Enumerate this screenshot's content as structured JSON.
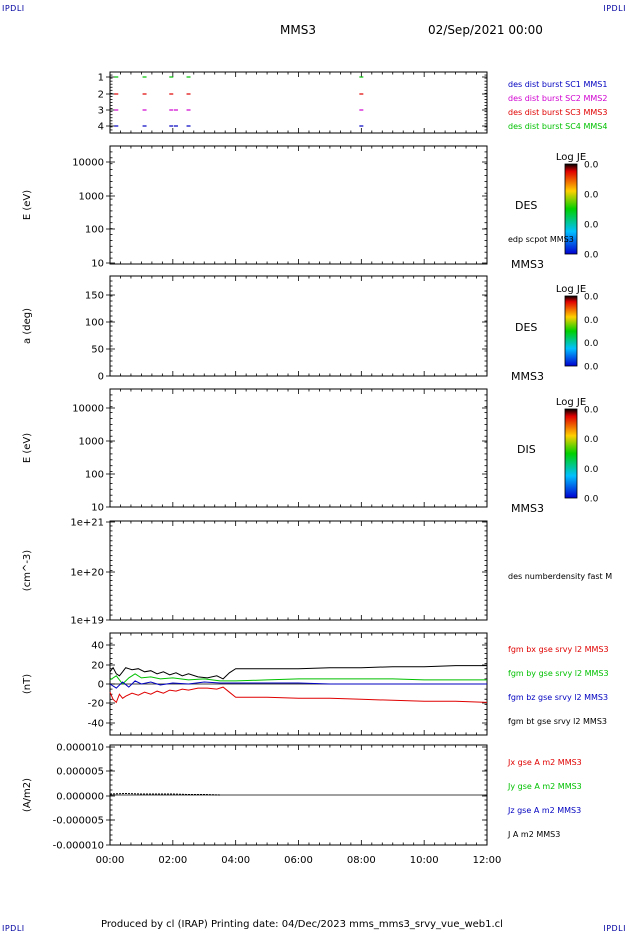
{
  "corner": {
    "tl": "IPDLI",
    "tr": "IPDLI",
    "bl": "IPDLI",
    "br": "IPDLI"
  },
  "header": {
    "spacecraft": "MMS3",
    "datetime": "02/Sep/2021 00:00"
  },
  "footer": {
    "text": "Produced by cl (IRAP)   Printing date: 04/Dec/2023   mms_mms3_srvy_vue_web1.cl"
  },
  "colors": {
    "red": "#e00000",
    "green": "#00c000",
    "blue": "#0000c0",
    "magenta": "#d000d0",
    "black": "#000000"
  },
  "chart_data": [
    {
      "type": "scatter",
      "id": "burst",
      "x_unit": "hours",
      "xlim": [
        0,
        12
      ],
      "ylim": [
        0.6,
        4.4
      ],
      "yticks": [
        "1",
        "2",
        "3",
        "4"
      ],
      "legend": [
        {
          "label": "des dist burst SC1 MMS1",
          "color": "#0000c0"
        },
        {
          "label": "des dist burst SC2 MMS2",
          "color": "#d000d0"
        },
        {
          "label": "des dist burst SC3 MMS3",
          "color": "#e00000"
        },
        {
          "label": "des dist burst SC4 MMS4",
          "color": "#00c000"
        }
      ],
      "series": [
        {
          "name": "des dist burst SC1 MMS1",
          "y": 1,
          "x": [
            0.2,
            1.1,
            1.95,
            2.1,
            2.5,
            8.0
          ]
        },
        {
          "name": "des dist burst SC2 MMS2",
          "y": 2,
          "x": [
            0.2,
            1.1,
            1.95,
            2.1,
            2.5,
            8.0
          ]
        },
        {
          "name": "des dist burst SC3 MMS3",
          "y": 3,
          "x": [
            0.2,
            1.1,
            1.95,
            2.5,
            8.0
          ]
        },
        {
          "name": "des dist burst SC4 MMS4",
          "y": 4,
          "x": [
            0.2,
            1.1,
            1.95,
            2.5,
            8.0
          ]
        }
      ]
    },
    {
      "type": "heatmap",
      "id": "des_energy",
      "ylabel": "E (eV)",
      "yscale": "log",
      "yticks": [
        "10000",
        "1000",
        "100",
        "10"
      ],
      "right_labels": [
        "DES",
        "edp scpot MMS3",
        "MMS3"
      ],
      "colorbar": {
        "title": "Log JE",
        "ticks": [
          "0.0",
          "0.0",
          "0.0",
          "0.0"
        ]
      }
    },
    {
      "type": "heatmap",
      "id": "des_pitch",
      "ylabel": "a (deg)",
      "yticks": [
        "150",
        "100",
        "50",
        "0"
      ],
      "right_labels": [
        "DES",
        "MMS3"
      ],
      "colorbar": {
        "title": "Log JE",
        "ticks": [
          "0.0",
          "0.0",
          "0.0",
          "0.0"
        ]
      }
    },
    {
      "type": "heatmap",
      "id": "dis_energy",
      "ylabel": "E (eV)",
      "yscale": "log",
      "yticks": [
        "10000",
        "1000",
        "100",
        "10"
      ],
      "right_labels": [
        "DIS",
        "MMS3"
      ],
      "colorbar": {
        "title": "Log JE",
        "ticks": [
          "0.0",
          "0.0",
          "0.0",
          "0.0"
        ]
      }
    },
    {
      "type": "line",
      "id": "density",
      "ylabel": "(cm^-3)",
      "yscale": "log",
      "yticks": [
        "1e+21",
        "1e+20",
        "1e+19"
      ],
      "legend": [
        {
          "label": "des numberdensity fast M",
          "color": "#000000"
        }
      ]
    },
    {
      "type": "line",
      "id": "fgm",
      "ylabel": "(nT)",
      "ylim": [
        -50,
        50
      ],
      "yticks": [
        "40",
        "20",
        "0",
        "-20",
        "-40"
      ],
      "x_unit": "hours",
      "legend": [
        {
          "label": "fgm bx gse srvy l2 MMS3",
          "color": "#e00000"
        },
        {
          "label": "fgm by gse srvy l2 MMS3",
          "color": "#00c000"
        },
        {
          "label": "fgm bz gse srvy l2 MMS3",
          "color": "#0000c0"
        },
        {
          "label": "fgm bt gse srvy l2 MMS3",
          "color": "#000000"
        }
      ],
      "series": [
        {
          "name": "fgm bt gse srvy l2 MMS3",
          "color": "#000000",
          "x": [
            0,
            0.1,
            0.2,
            0.3,
            0.4,
            0.5,
            0.7,
            0.9,
            1.1,
            1.3,
            1.5,
            1.7,
            1.9,
            2.1,
            2.3,
            2.5,
            2.8,
            3.1,
            3.4,
            3.6,
            3.8,
            4.0,
            5,
            6,
            7,
            8,
            9,
            10,
            11,
            12
          ],
          "y": [
            12,
            16,
            10,
            8,
            12,
            16,
            14,
            15,
            12,
            13,
            10,
            12,
            9,
            11,
            8,
            10,
            7,
            6,
            8,
            5,
            11,
            15,
            15,
            15,
            16,
            16,
            17,
            17,
            18,
            18
          ]
        },
        {
          "name": "fgm bx gse srvy l2 MMS3",
          "color": "#e00000",
          "x": [
            0,
            0.1,
            0.2,
            0.3,
            0.4,
            0.5,
            0.7,
            0.9,
            1.1,
            1.3,
            1.5,
            1.7,
            1.9,
            2.1,
            2.3,
            2.5,
            2.8,
            3.1,
            3.4,
            3.6,
            3.8,
            4.0,
            5,
            6,
            7,
            8,
            9,
            10,
            11,
            12
          ],
          "y": [
            -8,
            -15,
            -18,
            -10,
            -14,
            -12,
            -9,
            -11,
            -8,
            -10,
            -7,
            -9,
            -6,
            -7,
            -5,
            -6,
            -4,
            -4,
            -5,
            -3,
            -8,
            -13,
            -13,
            -14,
            -14,
            -15,
            -16,
            -17,
            -17,
            -18
          ]
        },
        {
          "name": "fgm by gse srvy l2 MMS3",
          "color": "#00c000",
          "x": [
            0,
            0.2,
            0.4,
            0.6,
            0.8,
            1.0,
            1.3,
            1.6,
            2.0,
            2.5,
            3.0,
            3.5,
            4.0,
            5,
            6,
            7,
            8,
            9,
            10,
            11,
            12
          ],
          "y": [
            4,
            8,
            0,
            6,
            10,
            6,
            7,
            5,
            6,
            4,
            5,
            3,
            3,
            4,
            5,
            5,
            5,
            5,
            4,
            4,
            4
          ]
        },
        {
          "name": "fgm bz gse srvy l2 MMS3",
          "color": "#0000c0",
          "x": [
            0,
            0.2,
            0.4,
            0.6,
            0.8,
            1.0,
            1.3,
            1.6,
            2.0,
            2.5,
            3.0,
            3.5,
            4.0,
            5,
            6,
            7,
            8,
            9,
            10,
            11,
            12
          ],
          "y": [
            0,
            -4,
            2,
            -3,
            3,
            0,
            2,
            -1,
            1,
            0,
            2,
            1,
            1,
            1,
            1,
            0,
            0,
            0,
            0,
            0,
            0
          ]
        }
      ]
    },
    {
      "type": "line",
      "id": "current",
      "ylabel": "(A/m2)",
      "ylim": [
        -1e-05,
        1e-05
      ],
      "yticks": [
        "0.000010",
        "0.000005",
        "0.000000",
        "-0.000005",
        "-0.000010"
      ],
      "x_unit": "hours",
      "xticks": [
        "00:00",
        "02:00",
        "04:00",
        "06:00",
        "08:00",
        "10:00",
        "12:00"
      ],
      "legend": [
        {
          "label": "Jx gse A m2 MMS3",
          "color": "#e00000"
        },
        {
          "label": "Jy gse A m2 MMS3",
          "color": "#00c000"
        },
        {
          "label": "Jz gse A m2 MMS3",
          "color": "#0000c0"
        },
        {
          "label": "J A m2 MMS3",
          "color": "#000000"
        }
      ],
      "series": [
        {
          "name": "J A m2 MMS3",
          "color": "#000000",
          "x": [
            0.0,
            0.5,
            1.0,
            1.5,
            2.0,
            2.5,
            3.0,
            3.5
          ],
          "y": [
            2e-07,
            3e-07,
            2e-07,
            2e-07,
            2e-07,
            1e-07,
            1e-07,
            0.0
          ]
        }
      ]
    }
  ]
}
